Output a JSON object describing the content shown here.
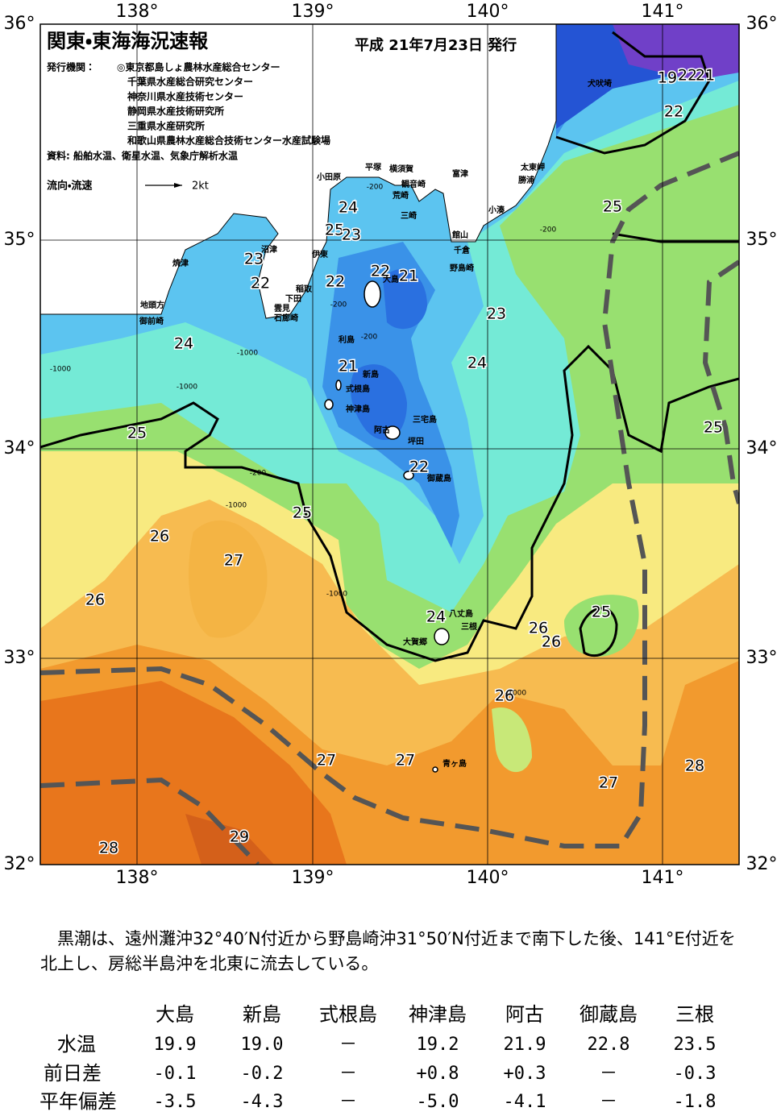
{
  "header": {
    "title": "関東・東海海況速報",
    "date": "平成 21年7月23日 発行",
    "issuer_label": "発行機関：",
    "issuers": [
      "◎東京都島しょ農林水産総合センター",
      "千葉県水産総合研究センター",
      "神奈川県水産技術センター",
      "静岡県水産技術研究所",
      "三重県水産研究所",
      "和歌山県農林水産総合技術センター水産試験場"
    ],
    "source": "資料: 船舶水温、衛星水温、気象庁解析水温",
    "current_label": "流向・流速",
    "current_scale": "2kt"
  },
  "map": {
    "lon_labels": [
      "138°",
      "139°",
      "140°",
      "141°"
    ],
    "lat_labels": [
      "36°",
      "35°",
      "34°",
      "33°",
      "32°"
    ],
    "contour_labels": [
      "19",
      "22",
      "21",
      "22",
      "25",
      "25",
      "24",
      "25",
      "23",
      "23",
      "22",
      "22",
      "22",
      "21",
      "23",
      "24",
      "24",
      "21",
      "25",
      "22",
      "25",
      "26",
      "27",
      "26",
      "24",
      "25",
      "26",
      "26",
      "26",
      "27",
      "27",
      "27",
      "28",
      "29",
      "28"
    ],
    "depth_labels": [
      "-200",
      "-200",
      "-200",
      "-200",
      "-200",
      "-1000",
      "-1000",
      "-1000",
      "-1000",
      "-1000",
      "-1000"
    ],
    "places": [
      "犬吠埼",
      "太東岬",
      "勝浦",
      "小湊",
      "館山",
      "千倉",
      "野島崎",
      "富津",
      "観音崎",
      "横須賀",
      "荒崎",
      "三崎",
      "平塚",
      "小田原",
      "伊東",
      "稲取",
      "下田",
      "雲見",
      "石廊崎",
      "沼津",
      "焼津",
      "地頭方",
      "御前崎",
      "利島",
      "新島",
      "式根島",
      "神津島",
      "三宅島",
      "大島",
      "阿古",
      "坪田",
      "御蔵島",
      "八丈島",
      "三根",
      "大賀郷",
      "青ヶ島"
    ]
  },
  "summary": "黒潮は、遠州灘沖32°40′N付近から野島崎沖31°50′N付近まで南下した後、141°E付近を北上し、房総半島沖を北東に流去している。",
  "table": {
    "columns": [
      "大島",
      "新島",
      "式根島",
      "神津島",
      "阿古",
      "御蔵島",
      "三根"
    ],
    "rows": [
      {
        "label": "水温",
        "values": [
          "19.9",
          "19.0",
          "－",
          "19.2",
          "21.9",
          "22.8",
          "23.5"
        ]
      },
      {
        "label": "前日差",
        "values": [
          "-0.1",
          "-0.2",
          "－",
          "+0.8",
          "+0.3",
          "－",
          "-0.3"
        ]
      },
      {
        "label": "平年偏差",
        "values": [
          "-3.5",
          "-4.3",
          "－",
          "-5.0",
          "-4.1",
          "－",
          "-1.8"
        ]
      }
    ]
  }
}
